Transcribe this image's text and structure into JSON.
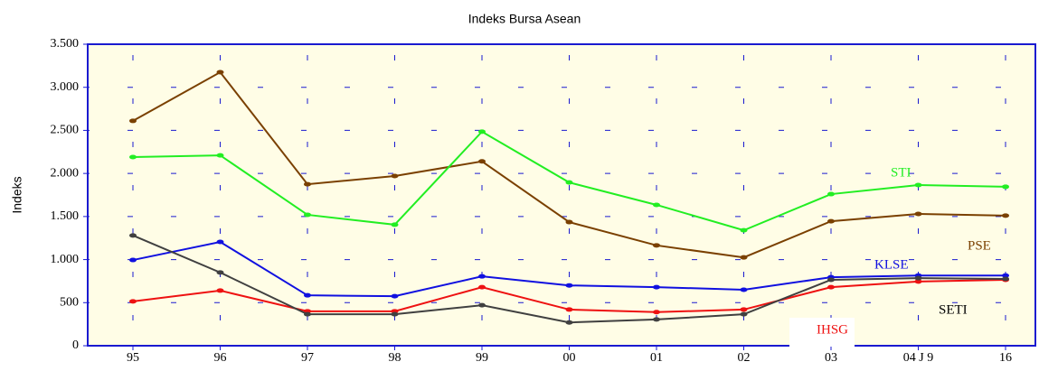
{
  "chart_data": {
    "type": "line",
    "title": "Indeks Bursa Asean",
    "y_label": "Indeks",
    "categories": [
      "95",
      "96",
      "97",
      "98",
      "99",
      "00",
      "01",
      "02",
      "03",
      "04 J 9",
      "16"
    ],
    "ylim": [
      0,
      3500
    ],
    "yticks": [
      0,
      500,
      {
        "value": 1000,
        "label": "1.000"
      },
      {
        "value": 1500,
        "label": "1.500"
      },
      {
        "value": 2000,
        "label": "2.000"
      },
      {
        "value": 2500,
        "label": "2.500"
      },
      {
        "value": 3000,
        "label": "3.000"
      },
      {
        "value": 3500,
        "label": "3.500"
      }
    ],
    "grid": true,
    "series": [
      {
        "name": "PSE",
        "color": "#7a4000",
        "values": [
          2610,
          3175,
          1875,
          1970,
          2140,
          1435,
          1165,
          1025,
          1445,
          1530,
          1510
        ]
      },
      {
        "name": "STI",
        "color": "#22ee22",
        "values": [
          2190,
          2210,
          1520,
          1405,
          2485,
          1895,
          1635,
          1340,
          1760,
          1865,
          1845
        ]
      },
      {
        "name": "KLSE",
        "color": "#1010e0",
        "values": [
          995,
          1205,
          585,
          575,
          805,
          700,
          680,
          650,
          795,
          815,
          815
        ]
      },
      {
        "name": "IHSG",
        "color": "#ee1111",
        "values": [
          515,
          640,
          400,
          400,
          680,
          420,
          390,
          420,
          680,
          745,
          765
        ]
      },
      {
        "name": "SETI",
        "color": "#404040",
        "values": [
          1280,
          850,
          365,
          365,
          470,
          270,
          305,
          365,
          765,
          785,
          775
        ]
      }
    ]
  }
}
